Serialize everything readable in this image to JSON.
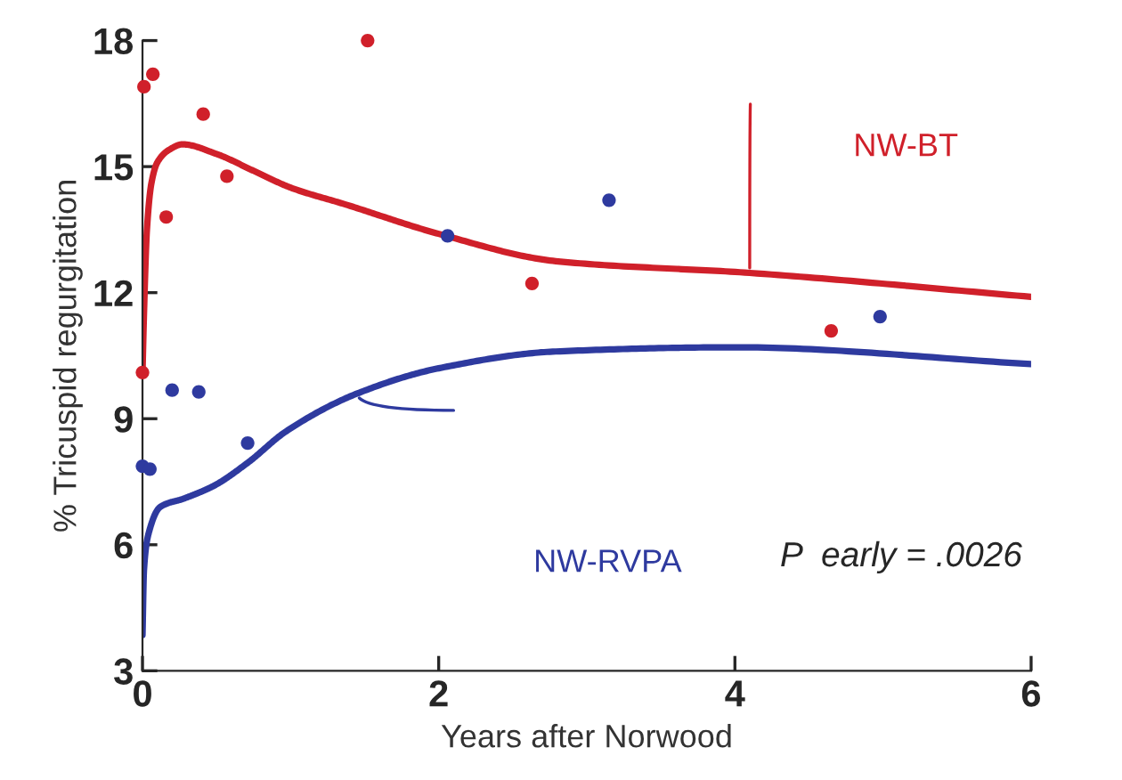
{
  "chart_data": {
    "type": "scatter",
    "xlabel": "Years after Norwood",
    "ylabel": "% Tricuspid regurgitation",
    "xlim": [
      0,
      6
    ],
    "ylim": [
      3,
      18
    ],
    "xticks": [
      0,
      2,
      4,
      6
    ],
    "yticks": [
      3,
      6,
      9,
      12,
      15,
      18
    ],
    "grid": false,
    "legend": false,
    "marker": "circle",
    "annotations": [
      "P  early = .0026"
    ],
    "series": [
      {
        "color": "#d0202a",
        "x": [
          0,
          0.01,
          0.07,
          0.16,
          0.41,
          0.57,
          1.52,
          2.63,
          4.65
        ],
        "values": [
          10.1,
          16.9,
          17.2,
          13.8,
          16.25,
          14.77,
          18.0,
          12.22,
          11.09
        ]
      },
      {
        "color": "#2e3a9f",
        "x": [
          0,
          0.05,
          0.2,
          0.38,
          0.71,
          2.06,
          3.15,
          4.98
        ],
        "values": [
          7.87,
          7.8,
          9.68,
          9.64,
          8.42,
          13.35,
          14.2,
          11.43
        ]
      },
      {
        "type": "line",
        "marker": "none",
        "name": "NW-BT",
        "color": "#d0202a",
        "x": [
          0,
          0.01,
          0.03,
          0.06,
          0.1,
          0.18,
          0.27,
          0.5,
          0.75,
          1.0,
          1.37,
          2.0,
          2.79,
          4.1,
          6.0
        ],
        "values": [
          10.1,
          11.5,
          13.5,
          14.6,
          15.1,
          15.4,
          15.53,
          15.3,
          14.9,
          14.5,
          14.1,
          13.4,
          12.75,
          12.47,
          11.9
        ]
      },
      {
        "type": "line",
        "marker": "none",
        "name": "NW-RVPA",
        "color": "#2e3a9f",
        "x": [
          0,
          0.01,
          0.04,
          0.12,
          0.28,
          0.48,
          0.71,
          0.97,
          1.45,
          2.0,
          2.79,
          4.0,
          6.0
        ],
        "values": [
          3.85,
          5.4,
          6.25,
          6.9,
          7.1,
          7.4,
          7.95,
          8.7,
          9.6,
          10.2,
          10.6,
          10.7,
          10.3
        ]
      }
    ]
  }
}
